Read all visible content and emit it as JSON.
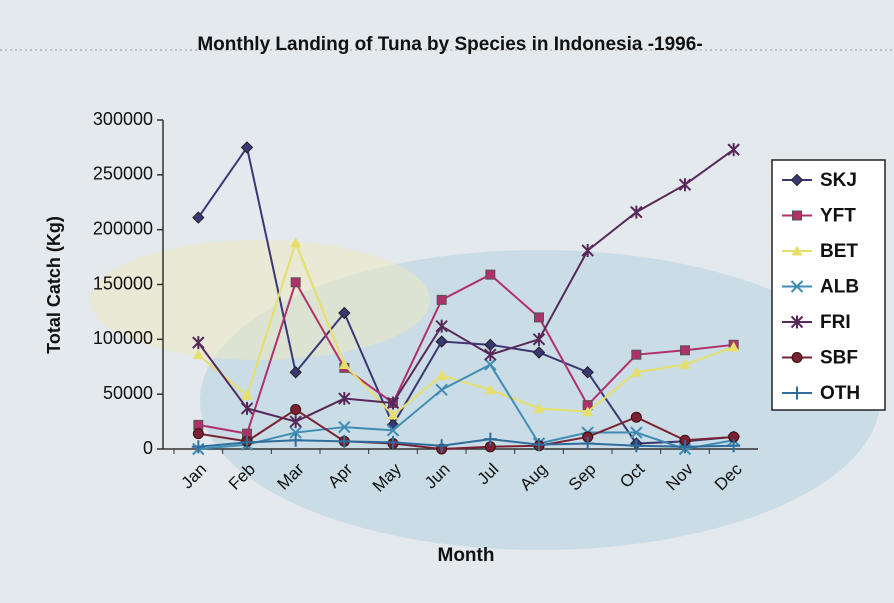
{
  "chart_data": {
    "type": "line",
    "title": "Monthly Landing of Tuna by Species in Indonesia -1996-",
    "x_label": "Month",
    "y_label": "Total Catch (Kg)",
    "categories": [
      "Jan",
      "Feb",
      "Mar",
      "Apr",
      "May",
      "Jun",
      "Jul",
      "Aug",
      "Sep",
      "Oct",
      "Nov",
      "Dec"
    ],
    "ylim": [
      0,
      300000
    ],
    "yticks": [
      0,
      50000,
      100000,
      150000,
      200000,
      250000,
      300000
    ],
    "legend": "right",
    "series": [
      {
        "name": "SKJ",
        "color": "#3b3775",
        "marker": "diamond",
        "values": [
          211000,
          275000,
          70000,
          124000,
          22000,
          98000,
          95000,
          88000,
          70000,
          5000,
          7000,
          11000
        ]
      },
      {
        "name": "YFT",
        "color": "#b0306a",
        "marker": "square",
        "values": [
          22000,
          14000,
          152000,
          74000,
          42000,
          136000,
          159000,
          120000,
          40000,
          86000,
          90000,
          95000
        ]
      },
      {
        "name": "BET",
        "color": "#e6df6a",
        "marker": "triangle",
        "values": [
          86000,
          49000,
          188000,
          77000,
          31000,
          67000,
          54000,
          37000,
          34000,
          70000,
          77000,
          93000
        ]
      },
      {
        "name": "ALB",
        "color": "#3f8db5",
        "marker": "x",
        "values": [
          0,
          4000,
          15000,
          20000,
          17000,
          54000,
          77000,
          5000,
          15000,
          15000,
          0,
          8000
        ]
      },
      {
        "name": "FRI",
        "color": "#56295a",
        "marker": "star",
        "values": [
          97000,
          37000,
          25000,
          46000,
          42000,
          112000,
          86000,
          100000,
          181000,
          216000,
          241000,
          273000
        ]
      },
      {
        "name": "SBF",
        "color": "#7a2233",
        "marker": "circle",
        "values": [
          14000,
          7000,
          36000,
          7000,
          5000,
          0,
          2000,
          3000,
          11000,
          29000,
          8000,
          11000
        ]
      },
      {
        "name": "OTH",
        "color": "#2f6d9c",
        "marker": "plus",
        "values": [
          2000,
          6000,
          8000,
          7000,
          6000,
          3000,
          9000,
          4000,
          5000,
          3000,
          2000,
          3000
        ]
      }
    ]
  }
}
